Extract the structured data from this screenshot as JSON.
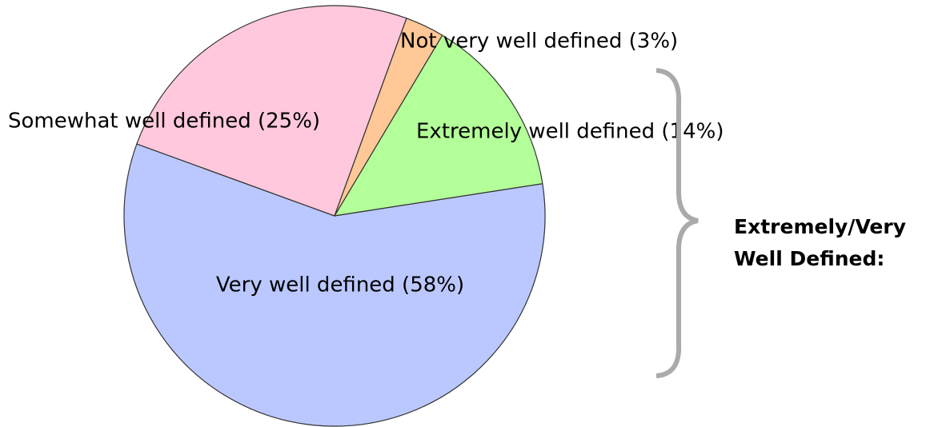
{
  "chart_data": {
    "type": "pie",
    "values": [
      14,
      58,
      25,
      3
    ],
    "value_labels": [
      "Extremely well defined (14%)",
      "Very well defined (58%)",
      "Somewhat well defined (25%)",
      "Not very well defined (3%)"
    ],
    "colors": [
      "#b3ff99",
      "#bbc8ff",
      "#ffc8dc",
      "#ffc896"
    ],
    "annotation": [
      "Extremely/Very",
      "Well Defined:"
    ]
  }
}
